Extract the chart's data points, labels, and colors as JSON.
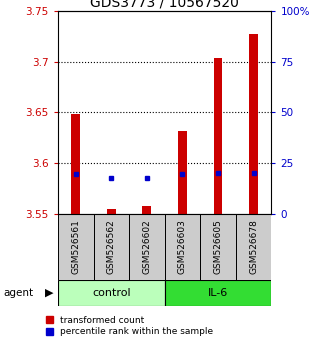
{
  "title": "GDS3773 / 10567520",
  "samples": [
    "GSM526561",
    "GSM526562",
    "GSM526602",
    "GSM526603",
    "GSM526605",
    "GSM526678"
  ],
  "transformed_counts": [
    3.648,
    3.555,
    3.558,
    3.632,
    3.703,
    3.727
  ],
  "percentile_ranks": [
    3.589,
    3.586,
    3.586,
    3.589,
    3.59,
    3.59
  ],
  "ymin": 3.55,
  "ymax": 3.75,
  "yticks_left": [
    3.55,
    3.6,
    3.65,
    3.7,
    3.75
  ],
  "yticks_left_labels": [
    "3.55",
    "3.6",
    "3.65",
    "3.7",
    "3.75"
  ],
  "right_tick_labels": [
    "0",
    "25",
    "50",
    "75",
    "100%"
  ],
  "bar_color": "#cc0000",
  "dot_color": "#0000cc",
  "bar_bottom": 3.55,
  "control_color": "#bbffbb",
  "il6_color": "#33dd33",
  "sample_box_color": "#cccccc",
  "agent_label": "agent",
  "control_label": "control",
  "il6_label": "IL-6",
  "legend_red_label": "transformed count",
  "legend_blue_label": "percentile rank within the sample",
  "title_fontsize": 10,
  "tick_fontsize": 7.5,
  "sample_fontsize": 6.5,
  "group_fontsize": 8,
  "left_tick_color": "#cc0000",
  "right_tick_color": "#0000cc",
  "bar_width": 0.25,
  "dot_size": 3.5,
  "gridline_vals": [
    3.6,
    3.65,
    3.7
  ]
}
